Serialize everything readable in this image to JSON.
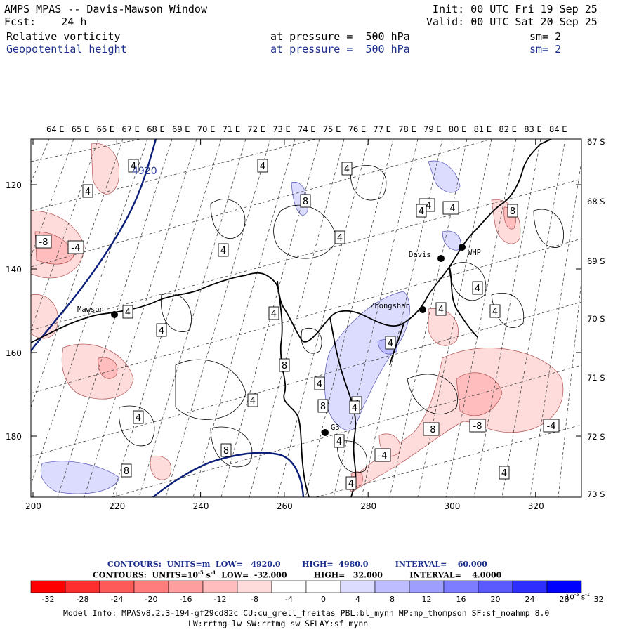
{
  "header": {
    "title": "AMPS MPAS -- Davis-Mawson Window",
    "fcst_label": "Fcst:",
    "fcst_value": "24 h",
    "init": "Init: 00 UTC Fri 19 Sep 25",
    "valid": "Valid: 00 UTC Sat 20 Sep 25",
    "field1": {
      "name": "Relative vorticity",
      "level": "at pressure =  500 hPa",
      "sm": "sm= 2"
    },
    "field2": {
      "name": "Geopotential height",
      "level": "at pressure =  500 hPa",
      "sm": "sm= 2"
    }
  },
  "top_lon_labels": [
    "64 E",
    "65 E",
    "66 E",
    "67 E",
    "68 E",
    "69 E",
    "70 E",
    "71 E",
    "72 E",
    "73 E",
    "74 E",
    "75 E",
    "76 E",
    "77 E",
    "78 E",
    "79 E",
    "80 E",
    "81 E",
    "82 E",
    "83 E",
    "84 E"
  ],
  "right_lat_labels": [
    "67 S",
    "68 S",
    "69 S",
    "70 S",
    "71 S",
    "72 S",
    "73 S"
  ],
  "left_y_ticks": [
    "120",
    "140",
    "160",
    "180"
  ],
  "bottom_x_ticks": [
    "200",
    "220",
    "240",
    "260",
    "280",
    "300",
    "320"
  ],
  "stations": [
    {
      "name": "Mawson"
    },
    {
      "name": "Davis"
    },
    {
      "name": "WHP"
    },
    {
      "name": "Zhongshan"
    },
    {
      "name": "G3"
    }
  ],
  "contour_labels": [
    "4",
    "4",
    "4",
    "4",
    "-4",
    "-4",
    "-8",
    "-4",
    "8",
    "4",
    "4",
    "8",
    "4",
    "4",
    "4",
    "4",
    "4",
    "4",
    "4",
    "8",
    "4",
    "4",
    "4",
    "8",
    "8",
    "4",
    "-4",
    "-8",
    "-8",
    "-4",
    "4",
    "4",
    "4",
    "4",
    "4",
    "8",
    "4"
  ],
  "height_label": "4920",
  "legend": {
    "line1": "CONTOURS:  UNITS=m  LOW=   4920.0        HIGH=  4980.0          INTERVAL=    60.000",
    "line2_a": "CONTOURS:  UNITS=10",
    "line2_exp": "-5",
    "line2_b": " s",
    "line2_exp2": "-1",
    "line2_c": "  LOW=  -32.000          HIGH=   32.000          INTERVAL=    4.0000",
    "colors": [
      "#ff0000",
      "#ff2e2e",
      "#ff5a5a",
      "#ff7d7d",
      "#ff9e9e",
      "#ffbdbd",
      "#ffdcdc",
      "#ffffff",
      "#ffffff",
      "#dcdcff",
      "#bdbdff",
      "#9e9eff",
      "#7d7dff",
      "#5a5aff",
      "#2e2eff",
      "#0000ff"
    ],
    "ticks": [
      "-32",
      "-28",
      "-24",
      "-20",
      "-16",
      "-12",
      "-8",
      "-4",
      "0",
      "4",
      "8",
      "12",
      "16",
      "20",
      "24",
      "28",
      "32"
    ],
    "units": "10",
    "units_exp": "-5",
    "units_s": " s",
    "units_exp2": "-1"
  },
  "model_info": {
    "line1": "Model Info: MPASv8.2.3-194-gf29cd82c CU:cu_grell_freitas PBL:bl_mynn MP:mp_thompson SF:sf_noahmp 8.0",
    "line2": "LW:rrtmg_lw SW:rrtmg_sw SFLAY:sf_mynn"
  }
}
